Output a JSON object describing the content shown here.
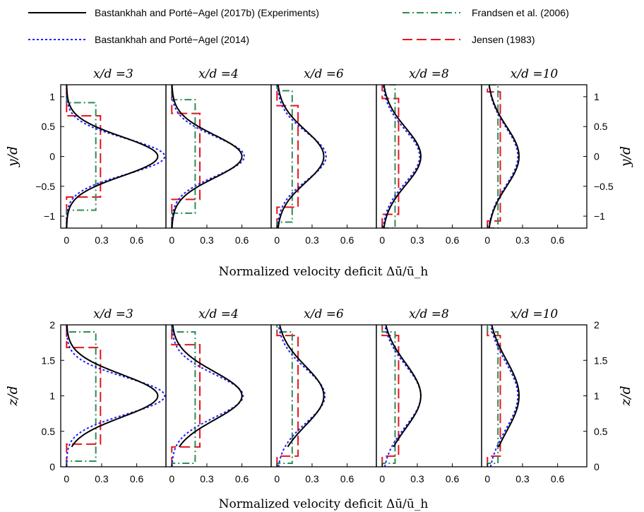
{
  "legend": [
    {
      "label": "Bastankhah and Porté−Agel (2017b) (Experiments)",
      "color": "#000000",
      "dash": "solid"
    },
    {
      "label": "Frandsen et al. (2006)",
      "color": "#2e8b57",
      "dash": "dashdot"
    },
    {
      "label": "Bastankhah and Porté−Agel (2014)",
      "color": "#1f1fff",
      "dash": "dotted"
    },
    {
      "label": "Jensen (1983)",
      "color": "#e8141c",
      "dash": "dashed"
    }
  ],
  "chart_data": [
    {
      "type": "line",
      "row": "top",
      "ylabel": "y/d",
      "xlabel": "Normalized velocity deficit Δū/ū_h",
      "ylim": [
        -1.2,
        1.2
      ],
      "xlim": [
        -0.05,
        0.85
      ],
      "x_ticks": [
        "0",
        "0.3",
        "0.6"
      ],
      "y_ticks": [
        "−1",
        "−0.5",
        "0",
        "0.5",
        "1"
      ],
      "left_y_ticks": [
        "−1",
        "−0.5",
        "0",
        "0.5",
        "1"
      ],
      "right_y_ticks": [
        "−1",
        "−0.5",
        "0",
        "0.5",
        "1"
      ],
      "panels": [
        {
          "title": "x/d =3",
          "exp_peak": 0.78,
          "exp_sigma": 0.33,
          "gauss_peak": 0.84,
          "gauss_sigma": 0.3,
          "fr_value": 0.25,
          "fr_extent": 0.9,
          "jen_value": 0.29,
          "jen_extent": 0.68
        },
        {
          "title": "x/d =4",
          "exp_peak": 0.6,
          "exp_sigma": 0.36,
          "gauss_peak": 0.62,
          "gauss_sigma": 0.33,
          "fr_value": 0.2,
          "fr_extent": 0.95,
          "jen_value": 0.24,
          "jen_extent": 0.72
        },
        {
          "title": "x/d =6",
          "exp_peak": 0.4,
          "exp_sigma": 0.44,
          "gauss_peak": 0.42,
          "gauss_sigma": 0.4,
          "fr_value": 0.13,
          "fr_extent": 1.1,
          "jen_value": 0.18,
          "jen_extent": 0.85
        },
        {
          "title": "x/d =8",
          "exp_peak": 0.33,
          "exp_sigma": 0.48,
          "gauss_peak": 0.32,
          "gauss_sigma": 0.45,
          "fr_value": 0.11,
          "fr_extent": 1.2,
          "jen_value": 0.14,
          "jen_extent": 0.97
        },
        {
          "title": "x/d =10",
          "exp_peak": 0.27,
          "exp_sigma": 0.5,
          "gauss_peak": 0.26,
          "gauss_sigma": 0.49,
          "fr_value": 0.09,
          "fr_extent": 1.2,
          "jen_value": 0.11,
          "jen_extent": 1.08
        }
      ]
    },
    {
      "type": "line",
      "row": "bottom",
      "ylabel": "z/d",
      "xlabel": "Normalized velocity deficit Δū/ū_h",
      "ylim": [
        0,
        2
      ],
      "xlim": [
        -0.05,
        0.85
      ],
      "x_ticks": [
        "0",
        "0.3",
        "0.6"
      ],
      "left_y_ticks": [
        "0",
        "0.5",
        "1",
        "1.5",
        "2"
      ],
      "right_y_ticks": [
        "0",
        "0.5",
        "1",
        "1.5",
        "2"
      ],
      "panels": [
        {
          "title": "x/d =3",
          "exp_peak": 0.78,
          "exp_sigma": 0.3,
          "exp_zmin": 0.28,
          "gauss_peak": 0.84,
          "gauss_sigma": 0.26,
          "fr_value": 0.25,
          "fr_extent": 0.92,
          "jen_value": 0.29,
          "jen_extent": 0.68
        },
        {
          "title": "x/d =4",
          "exp_peak": 0.6,
          "exp_sigma": 0.34,
          "exp_zmin": 0.28,
          "gauss_peak": 0.61,
          "gauss_sigma": 0.3,
          "fr_value": 0.2,
          "fr_extent": 0.95,
          "jen_value": 0.24,
          "jen_extent": 0.72
        },
        {
          "title": "x/d =6",
          "exp_peak": 0.4,
          "exp_sigma": 0.42,
          "exp_zmin": 0.28,
          "gauss_peak": 0.41,
          "gauss_sigma": 0.38,
          "fr_value": 0.13,
          "fr_extent": 1.1,
          "jen_value": 0.18,
          "jen_extent": 0.85
        },
        {
          "title": "x/d =8",
          "exp_peak": 0.33,
          "exp_sigma": 0.46,
          "exp_zmin": 0.28,
          "gauss_peak": 0.33,
          "gauss_sigma": 0.43,
          "fr_value": 0.11,
          "fr_extent": 1.2,
          "jen_value": 0.14,
          "jen_extent": 0.97
        },
        {
          "title": "x/d =10",
          "exp_peak": 0.27,
          "exp_sigma": 0.5,
          "exp_zmin": 0.28,
          "gauss_peak": 0.26,
          "gauss_sigma": 0.47,
          "fr_value": 0.09,
          "fr_extent": 1.2,
          "jen_value": 0.11,
          "jen_extent": 1.08
        }
      ]
    }
  ]
}
